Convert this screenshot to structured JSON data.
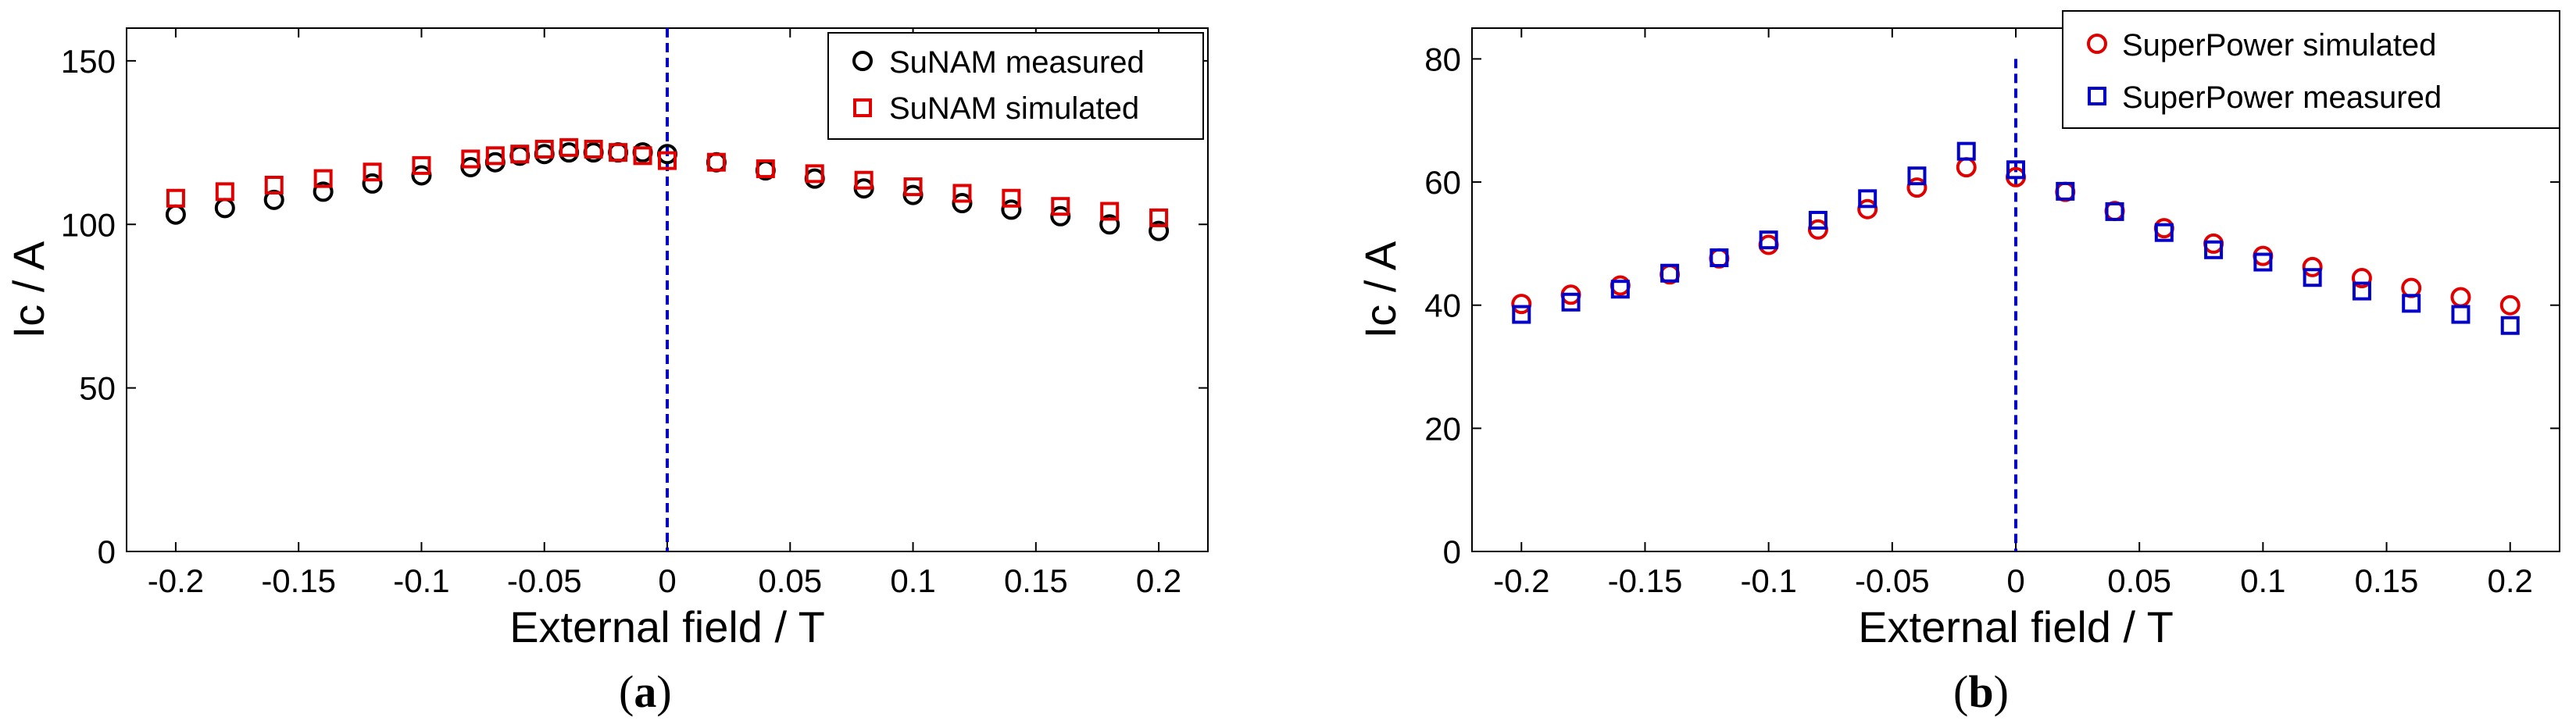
{
  "chart_data": [
    {
      "type": "scatter",
      "panel_label": [
        "(",
        "a",
        ")"
      ],
      "xlabel": "External field / T",
      "ylabel": "Ic / A",
      "xlim": [
        -0.22,
        0.22
      ],
      "ylim": [
        0,
        160
      ],
      "xticks": [
        -0.2,
        -0.15,
        -0.1,
        -0.05,
        0,
        0.05,
        0.1,
        0.15,
        0.2
      ],
      "xtick_labels": [
        "-0.2",
        "-0.15",
        "-0.1",
        "-0.05",
        "0",
        "0.05",
        "0.1",
        "0.15",
        "0.2"
      ],
      "yticks": [
        0,
        50,
        100,
        150
      ],
      "ytick_labels": [
        "0",
        "50",
        "100",
        "150"
      ],
      "vline_x": 0,
      "legend_position": "top-right",
      "series": [
        {
          "name": "SuNAM measured",
          "marker": "circle",
          "color": "#000000",
          "x": [
            -0.2,
            -0.18,
            -0.16,
            -0.14,
            -0.12,
            -0.1,
            -0.08,
            -0.07,
            -0.06,
            -0.05,
            -0.04,
            -0.03,
            -0.02,
            -0.01,
            0,
            0.02,
            0.04,
            0.06,
            0.08,
            0.1,
            0.12,
            0.14,
            0.16,
            0.18,
            0.2
          ],
          "y": [
            103,
            105,
            107.5,
            110,
            112.5,
            115,
            117.5,
            119,
            121,
            121.5,
            122,
            122,
            122,
            122,
            121.5,
            119,
            116.5,
            114,
            111,
            109,
            106.5,
            104.5,
            102.5,
            100,
            98
          ]
        },
        {
          "name": "SuNAM simulated",
          "marker": "square",
          "color": "#e00000",
          "x": [
            -0.2,
            -0.18,
            -0.16,
            -0.14,
            -0.12,
            -0.1,
            -0.08,
            -0.07,
            -0.06,
            -0.05,
            -0.04,
            -0.03,
            -0.02,
            -0.01,
            0,
            0.02,
            0.04,
            0.06,
            0.08,
            0.1,
            0.12,
            0.14,
            0.16,
            0.18,
            0.2
          ],
          "y": [
            108,
            110,
            112,
            114,
            116,
            118,
            120,
            121,
            121.5,
            123,
            123.5,
            123,
            122,
            121,
            119.5,
            119,
            117,
            115.5,
            113.5,
            111.5,
            109.5,
            108,
            105.5,
            104,
            102
          ]
        }
      ]
    },
    {
      "type": "scatter",
      "panel_label": [
        "(",
        "b",
        ")"
      ],
      "xlabel": "External field / T",
      "ylabel": "Ic / A",
      "xlim": [
        -0.22,
        0.22
      ],
      "ylim": [
        0,
        85
      ],
      "xticks": [
        -0.2,
        -0.15,
        -0.1,
        -0.05,
        0,
        0.05,
        0.1,
        0.15,
        0.2
      ],
      "xtick_labels": [
        "-0.2",
        "-0.15",
        "-0.1",
        "-0.05",
        "0",
        "0.05",
        "0.1",
        "0.15",
        "0.2"
      ],
      "yticks": [
        0,
        20,
        40,
        60,
        80
      ],
      "ytick_labels": [
        "0",
        "20",
        "40",
        "60",
        "80"
      ],
      "vline_x": 0,
      "vline_top": 80,
      "legend_position": "top-right",
      "series": [
        {
          "name": "SuperPower simulated",
          "marker": "circle",
          "color": "#e00000",
          "x": [
            -0.2,
            -0.18,
            -0.16,
            -0.14,
            -0.12,
            -0.1,
            -0.08,
            -0.06,
            -0.04,
            -0.02,
            0,
            0.02,
            0.04,
            0.06,
            0.08,
            0.1,
            0.12,
            0.14,
            0.16,
            0.18,
            0.2
          ],
          "y": [
            40.2,
            41.7,
            43.2,
            45,
            47.6,
            49.8,
            52.3,
            55.6,
            59.1,
            62.4,
            60.8,
            58.4,
            55.3,
            52.5,
            50,
            48,
            46.2,
            44.4,
            42.8,
            41.3,
            40
          ]
        },
        {
          "name": "SuperPower measured",
          "marker": "square",
          "color": "#0000c8",
          "x": [
            -0.2,
            -0.18,
            -0.16,
            -0.14,
            -0.12,
            -0.1,
            -0.08,
            -0.06,
            -0.04,
            -0.02,
            0,
            0.02,
            0.04,
            0.06,
            0.08,
            0.1,
            0.12,
            0.14,
            0.16,
            0.18,
            0.2
          ],
          "y": [
            38.5,
            40.5,
            42.6,
            45.2,
            47.7,
            50.6,
            53.8,
            57.3,
            61,
            65,
            62,
            58.5,
            55.2,
            51.8,
            49,
            47,
            44.5,
            42.3,
            40.3,
            38.5,
            36.7
          ]
        }
      ]
    }
  ]
}
